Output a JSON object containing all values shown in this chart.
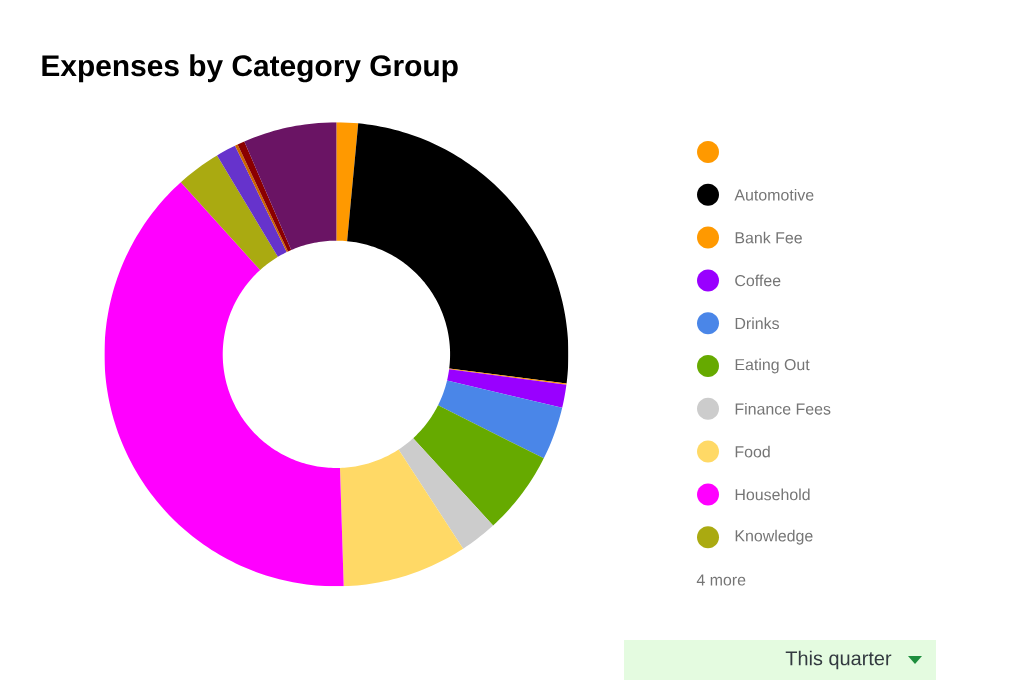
{
  "chart_data": {
    "type": "donut",
    "title": "Expenses by Category Group",
    "categories": [
      null,
      "Automotive",
      "Bank Fee",
      "Coffee",
      "Drinks",
      "Eating Out",
      "Finance Fees",
      "Food",
      "Household",
      "Knowledge",
      null,
      null,
      null,
      null
    ],
    "values": [
      1.5,
      25.5,
      0.1,
      1.6,
      3.7,
      5.8,
      2.6,
      8.7,
      38.8,
      3.1,
      1.4,
      0.2,
      0.5,
      6.5
    ],
    "colors": [
      "#ff9900",
      "#000000",
      "#ff9900",
      "#9900ff",
      "#4a86e8",
      "#66aa00",
      "#cccccc",
      "#ffd966",
      "#ff00ff",
      "#aaaa11",
      "#6633cc",
      "#cc6600",
      "#8b0000",
      "#6a1464"
    ],
    "legend": "right",
    "annotations": [
      "4 more",
      "This quarter"
    ]
  }
}
